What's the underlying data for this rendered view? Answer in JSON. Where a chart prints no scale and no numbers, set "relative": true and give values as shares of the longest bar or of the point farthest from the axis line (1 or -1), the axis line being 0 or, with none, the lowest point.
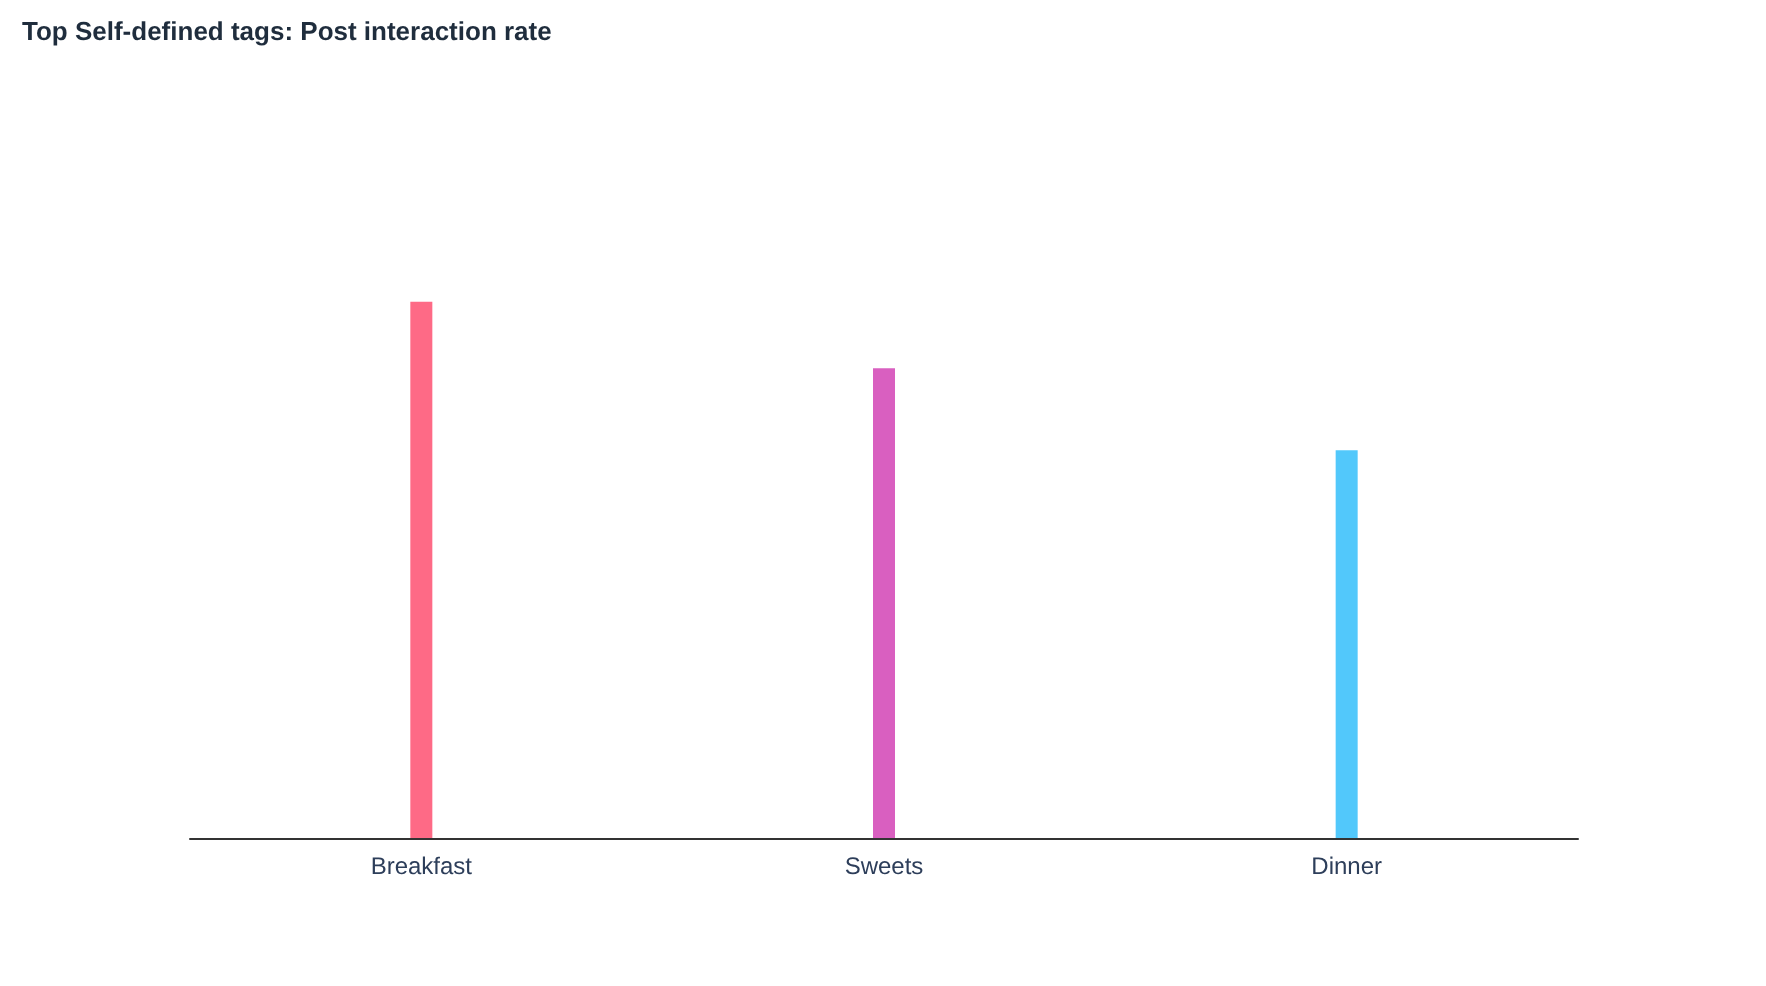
{
  "chart_data": {
    "type": "bar",
    "title": "Top Self-defined tags: Post interaction rate",
    "categories": [
      "Breakfast",
      "Sweets",
      "Dinner"
    ],
    "values": [
      1,
      0.876,
      0.723
    ],
    "colors": [
      "#fe6a86",
      "#d95fc0",
      "#52c8fb"
    ],
    "relative": true
  }
}
